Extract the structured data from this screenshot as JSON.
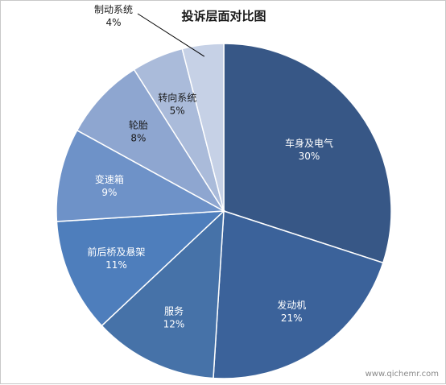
{
  "chart_data": {
    "type": "pie",
    "title": "投诉层面对比图",
    "categories": [
      "车身及电气",
      "发动机",
      "服务",
      "前后桥及悬架",
      "变速箱",
      "轮胎",
      "转向系统",
      "制动系统"
    ],
    "values": [
      30,
      21,
      12,
      11,
      9,
      8,
      5,
      4
    ],
    "value_labels": [
      "30%",
      "21%",
      "12%",
      "11%",
      "9%",
      "8%",
      "5%",
      "4%"
    ],
    "colors": [
      "#375786",
      "#3b629a",
      "#4672a8",
      "#4e7ebc",
      "#6e92c8",
      "#8ea6d0",
      "#aabbda",
      "#c6d1e6"
    ],
    "start": "12 o'clock",
    "direction": "clockwise",
    "legend": "none",
    "label_positions": "inside, except the smallest slice which uses a leader line"
  },
  "watermark": "www.qichemr.com"
}
